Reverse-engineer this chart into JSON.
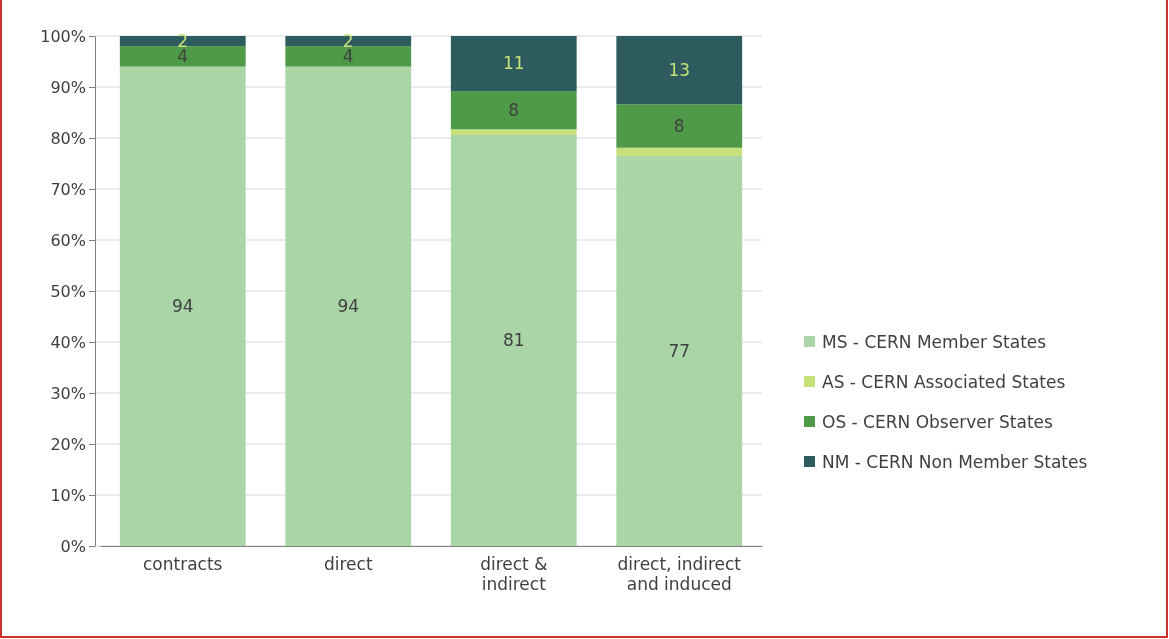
{
  "chart_data": {
    "type": "bar",
    "stacked": true,
    "categories": [
      "contracts",
      "direct",
      "direct & indirect",
      "direct, indirect and induced"
    ],
    "series": [
      {
        "name": "MS - CERN Member States",
        "color": "#a9d5a7",
        "values": [
          94,
          94,
          80.6,
          76.5
        ],
        "value_labels": [
          "94",
          "94",
          "81",
          "77"
        ]
      },
      {
        "name": "AS - CERN Associated States",
        "color": "#c6e07a",
        "values": [
          0,
          0,
          1.1,
          1.6
        ],
        "value_labels": [
          null,
          null,
          null,
          null
        ]
      },
      {
        "name": "OS - CERN Observer States",
        "color": "#4e9a48",
        "values": [
          4,
          4,
          7.5,
          8.5
        ],
        "value_labels": [
          "4",
          "4",
          "8",
          "8"
        ]
      },
      {
        "name": "NM - CERN Non Member States",
        "color": "#2d5b5e",
        "values": [
          2,
          2,
          10.8,
          13.4
        ],
        "value_labels": [
          "2",
          "2",
          "11",
          "13"
        ]
      }
    ],
    "ylim": [
      0,
      100
    ],
    "yticks": [
      {
        "value": 0,
        "label": "0%"
      },
      {
        "value": 10,
        "label": "10%"
      },
      {
        "value": 20,
        "label": "20%"
      },
      {
        "value": 30,
        "label": "30%"
      },
      {
        "value": 40,
        "label": "40%"
      },
      {
        "value": 50,
        "label": "50%"
      },
      {
        "value": 60,
        "label": "60%"
      },
      {
        "value": 70,
        "label": "70%"
      },
      {
        "value": 80,
        "label": "80%"
      },
      {
        "value": 90,
        "label": "90%"
      },
      {
        "value": 100,
        "label": "100%"
      }
    ],
    "grid": "y",
    "legend": "right"
  }
}
